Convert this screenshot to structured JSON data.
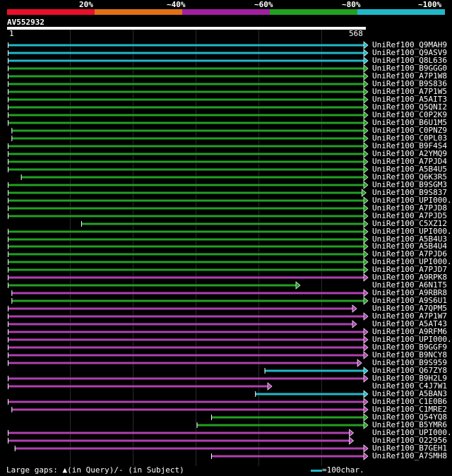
{
  "legend": [
    {
      "label": "20%",
      "color": "#e8102a"
    },
    {
      "label": "~40%",
      "color": "#e07018"
    },
    {
      "label": "~60%",
      "color": "#a020a0"
    },
    {
      "label": "~80%",
      "color": "#22a022"
    },
    {
      "label": "~100%",
      "color": "#20b8c8"
    }
  ],
  "query": {
    "id": "AV552932",
    "start": 1,
    "end": 568
  },
  "hits": [
    {
      "name": "UniRef100_Q9MAH9",
      "color": "cyan",
      "start": 1,
      "end": 568
    },
    {
      "name": "UniRef100_Q9ASV9",
      "color": "cyan",
      "start": 1,
      "end": 568
    },
    {
      "name": "UniRef100_Q8L636",
      "color": "cyan",
      "start": 1,
      "end": 568
    },
    {
      "name": "UniRef100_B9GGG0",
      "color": "green",
      "start": 1,
      "end": 568
    },
    {
      "name": "UniRef100_A7P1W8",
      "color": "green",
      "start": 1,
      "end": 568
    },
    {
      "name": "UniRef100_B9S836",
      "color": "green",
      "start": 1,
      "end": 568
    },
    {
      "name": "UniRef100_A7P1W5",
      "color": "green",
      "start": 1,
      "end": 568
    },
    {
      "name": "UniRef100_A5AIT3",
      "color": "green",
      "start": 1,
      "end": 568
    },
    {
      "name": "UniRef100_Q5QNI2",
      "color": "green",
      "start": 1,
      "end": 568
    },
    {
      "name": "UniRef100_C0P2K9",
      "color": "green",
      "start": 1,
      "end": 568
    },
    {
      "name": "UniRef100_B6U1M5",
      "color": "green",
      "start": 1,
      "end": 568
    },
    {
      "name": "UniRef100_C0PNZ9",
      "color": "green",
      "start": 7,
      "end": 568
    },
    {
      "name": "UniRef100_C0PL03",
      "color": "green",
      "start": 7,
      "end": 568
    },
    {
      "name": "UniRef100_B9F4S4",
      "color": "green",
      "start": 1,
      "end": 568
    },
    {
      "name": "UniRef100_A2YMQ9",
      "color": "green",
      "start": 1,
      "end": 568
    },
    {
      "name": "UniRef100_A7PJD4",
      "color": "green",
      "start": 1,
      "end": 568
    },
    {
      "name": "UniRef100_A5B4U5",
      "color": "green",
      "start": 1,
      "end": 568
    },
    {
      "name": "UniRef100_Q6K3R5",
      "color": "green",
      "start": 22,
      "end": 568
    },
    {
      "name": "UniRef100_B9SGM3",
      "color": "green",
      "start": 1,
      "end": 568
    },
    {
      "name": "UniRef100_B9S837",
      "color": "green",
      "start": 1,
      "end": 565
    },
    {
      "name": "UniRef100_UPI000..",
      "color": "green",
      "start": 1,
      "end": 568
    },
    {
      "name": "UniRef100_A7PJD8",
      "color": "green",
      "start": 1,
      "end": 568
    },
    {
      "name": "UniRef100_A7PJD5",
      "color": "green",
      "start": 1,
      "end": 568
    },
    {
      "name": "UniRef100_C5XZ12",
      "color": "green",
      "start": 118,
      "end": 568
    },
    {
      "name": "UniRef100_UPI000..",
      "color": "green",
      "start": 1,
      "end": 568
    },
    {
      "name": "UniRef100_A5B4U3",
      "color": "green",
      "start": 1,
      "end": 568
    },
    {
      "name": "UniRef100_A5B4U4",
      "color": "green",
      "start": 1,
      "end": 568
    },
    {
      "name": "UniRef100_A7PJD6",
      "color": "green",
      "start": 1,
      "end": 568
    },
    {
      "name": "UniRef100_UPI000..",
      "color": "green",
      "start": 1,
      "end": 568
    },
    {
      "name": "UniRef100_A7PJD7",
      "color": "green",
      "start": 1,
      "end": 568
    },
    {
      "name": "UniRef100_A9RPK8",
      "color": "magenta",
      "start": 1,
      "end": 568
    },
    {
      "name": "UniRef100_A6N1T5",
      "color": "green",
      "start": 1,
      "end": 460
    },
    {
      "name": "UniRef100_A9RBR8",
      "color": "magenta",
      "start": 7,
      "end": 568
    },
    {
      "name": "UniRef100_A9S6U1",
      "color": "green",
      "start": 7,
      "end": 568
    },
    {
      "name": "UniRef100_A7QPM5",
      "color": "magenta",
      "start": 1,
      "end": 550
    },
    {
      "name": "UniRef100_A7P1W7",
      "color": "magenta",
      "start": 1,
      "end": 568
    },
    {
      "name": "UniRef100_A5AT43",
      "color": "magenta",
      "start": 1,
      "end": 550
    },
    {
      "name": "UniRef100_A9RFM6",
      "color": "magenta",
      "start": 1,
      "end": 568
    },
    {
      "name": "UniRef100_UPI000..",
      "color": "magenta",
      "start": 1,
      "end": 568
    },
    {
      "name": "UniRef100_B9GGF9",
      "color": "magenta",
      "start": 1,
      "end": 568
    },
    {
      "name": "UniRef100_B9NCY8",
      "color": "magenta",
      "start": 1,
      "end": 568
    },
    {
      "name": "UniRef100_B9S959",
      "color": "magenta",
      "start": 1,
      "end": 558
    },
    {
      "name": "UniRef100_Q67ZY8",
      "color": "cyan",
      "start": 410,
      "end": 568
    },
    {
      "name": "UniRef100_B9H2L9",
      "color": "magenta",
      "start": 1,
      "end": 568
    },
    {
      "name": "UniRef100_C4J7W1",
      "color": "magenta",
      "start": 1,
      "end": 415
    },
    {
      "name": "UniRef100_A5BAN3",
      "color": "cyan",
      "start": 395,
      "end": 568
    },
    {
      "name": "UniRef100_C1E0B6",
      "color": "magenta",
      "start": 1,
      "end": 568
    },
    {
      "name": "UniRef100_C1MRE2",
      "color": "magenta",
      "start": 7,
      "end": 568
    },
    {
      "name": "UniRef100_Q54YQ8",
      "color": "green",
      "start": 325,
      "end": 568
    },
    {
      "name": "UniRef100_B5YMR6",
      "color": "green",
      "start": 302,
      "end": 568
    },
    {
      "name": "UniRef100_UPI000..",
      "color": "magenta",
      "start": 1,
      "end": 545
    },
    {
      "name": "UniRef100_O22956",
      "color": "magenta",
      "start": 1,
      "end": 545
    },
    {
      "name": "UniRef100_B7GEH1",
      "color": "magenta",
      "start": 12,
      "end": 568
    },
    {
      "name": "UniRef100_A7SMH8",
      "color": "magenta",
      "start": 325,
      "end": 568
    }
  ],
  "footer": {
    "prefix": "Large gaps:",
    "query_gap": "(in Query)/",
    "subject_gap": "(in Subject)",
    "scale": "=100char."
  }
}
